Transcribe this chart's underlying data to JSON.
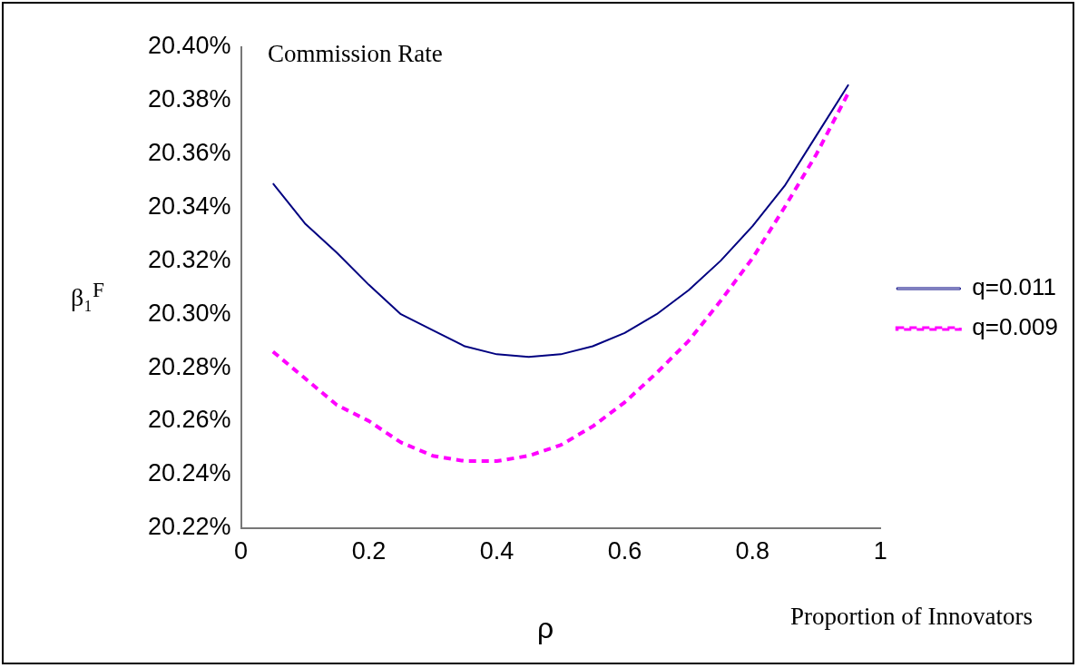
{
  "chart_data": {
    "type": "line",
    "title": "Commission Rate",
    "xlabel": "ρ",
    "ylabel": "β₁$^{F}$",
    "annotations": [
      "Proportion of Innovators"
    ],
    "x": [
      0.05,
      0.1,
      0.15,
      0.2,
      0.25,
      0.3,
      0.35,
      0.4,
      0.45,
      0.5,
      0.55,
      0.6,
      0.65,
      0.7,
      0.75,
      0.8,
      0.85,
      0.9,
      0.95
    ],
    "series": [
      {
        "name": "q=0.011",
        "color": "#000080",
        "line_style": "solid",
        "values": [
          20.349,
          20.334,
          20.323,
          20.311,
          20.3,
          20.294,
          20.288,
          20.285,
          20.284,
          20.285,
          20.288,
          20.293,
          20.3,
          20.309,
          20.32,
          20.333,
          20.348,
          20.367,
          20.386
        ]
      },
      {
        "name": "q=0.009",
        "color": "#ff00ff",
        "line_style": "dashed",
        "values": [
          20.286,
          20.276,
          20.266,
          20.26,
          20.252,
          20.247,
          20.245,
          20.245,
          20.247,
          20.251,
          20.258,
          20.267,
          20.278,
          20.29,
          20.305,
          20.321,
          20.34,
          20.36,
          20.383
        ]
      }
    ],
    "xlim": [
      0,
      1
    ],
    "xticks": [
      0,
      0.2,
      0.4,
      0.6,
      0.8,
      1
    ],
    "ylim": [
      20.22,
      20.4
    ],
    "yticks": [
      {
        "value": 20.22,
        "label": "20.22%"
      },
      {
        "value": 20.24,
        "label": "20.24%"
      },
      {
        "value": 20.26,
        "label": "20.26%"
      },
      {
        "value": 20.28,
        "label": "20.28%"
      },
      {
        "value": 20.3,
        "label": "20.30%"
      },
      {
        "value": 20.32,
        "label": "20.32%"
      },
      {
        "value": 20.34,
        "label": "20.34%"
      },
      {
        "value": 20.36,
        "label": "20.36%"
      },
      {
        "value": 20.38,
        "label": "20.38%"
      },
      {
        "value": 20.4,
        "label": "20.40%"
      }
    ],
    "grid": false,
    "legend": "right",
    "marker": "none"
  }
}
